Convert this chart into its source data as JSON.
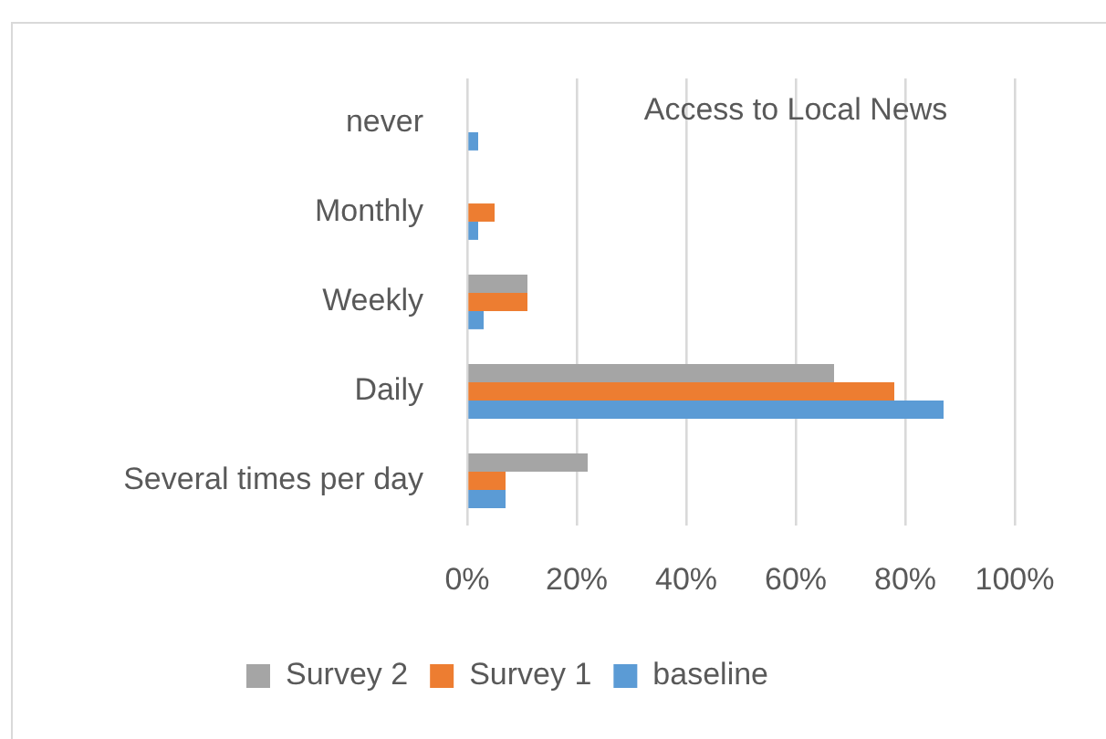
{
  "chart_data": {
    "type": "bar",
    "orientation": "horizontal",
    "title": "Access to Local News",
    "categories": [
      "never",
      "Monthly",
      "Weekly",
      "Daily",
      "Several times per day"
    ],
    "series": [
      {
        "name": "Survey 2",
        "color": "#a5a5a5",
        "values": [
          0,
          0,
          11,
          67,
          22
        ]
      },
      {
        "name": "Survey 1",
        "color": "#ed7d31",
        "values": [
          0,
          5,
          11,
          78,
          7
        ]
      },
      {
        "name": "baseline",
        "color": "#5b9bd5",
        "values": [
          2,
          2,
          3,
          87,
          7
        ]
      }
    ],
    "xlim": [
      0,
      100
    ],
    "xticks": [
      {
        "value": 0,
        "label": "0%"
      },
      {
        "value": 20,
        "label": "20%"
      },
      {
        "value": 40,
        "label": "40%"
      },
      {
        "value": 60,
        "label": "60%"
      },
      {
        "value": 80,
        "label": "80%"
      },
      {
        "value": 100,
        "label": "100%"
      }
    ],
    "grid": "x",
    "legend": "bottom"
  }
}
